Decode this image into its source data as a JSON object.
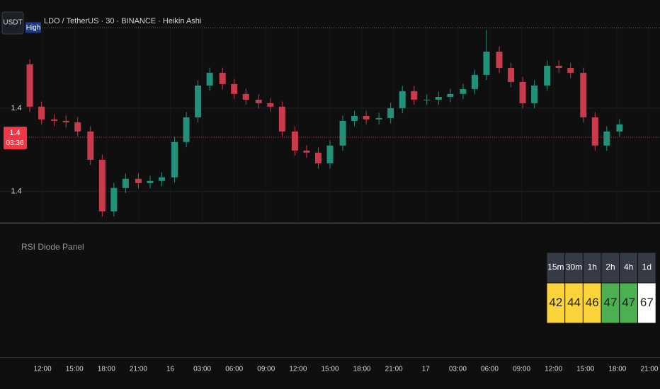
{
  "chart_data": {
    "type": "candlestick",
    "title": "LDO / TetherUS · 30 · BINANCE · Heikin Ashi",
    "currency": "USDT",
    "up_color": "#22917a",
    "down_color": "#c93b4c",
    "x": [
      10.8,
      11.9,
      13.1,
      14.2,
      15.3,
      16.5,
      17.6,
      18.7,
      19.8,
      21.0,
      22.1,
      23.2,
      24.4,
      25.5,
      26.6,
      27.7,
      28.9,
      30.0,
      31.1,
      32.3,
      33.4,
      34.5,
      35.7,
      36.8,
      37.9,
      39.0,
      40.2,
      41.3,
      42.4,
      43.6,
      44.7,
      45.8,
      46.9,
      48.1,
      49.2,
      50.3,
      51.5,
      52.6,
      53.7,
      54.9,
      56.0,
      57.1,
      58.2,
      59.4,
      60.5,
      61.6,
      62.8,
      63.9,
      65.0,
      66.2
    ],
    "open": [
      1.4082,
      1.40414,
      1.40292,
      1.40278,
      1.40264,
      1.40176,
      1.39905,
      1.3941,
      1.39634,
      1.39722,
      1.39681,
      1.39702,
      1.39736,
      1.40075,
      1.40312,
      1.40617,
      1.40739,
      1.40631,
      1.40536,
      1.40481,
      1.40447,
      1.40414,
      1.40176,
      1.39993,
      1.39973,
      1.39871,
      1.40041,
      1.40278,
      1.40325,
      1.40292,
      1.40305,
      1.404,
      1.40563,
      1.40481,
      1.40481,
      1.40508,
      1.40536,
      1.40583,
      1.40719,
      1.40942,
      1.40786,
      1.40651,
      1.40447,
      1.40617,
      1.40807,
      1.40786,
      1.40739,
      1.40312,
      1.40041,
      1.40176
    ],
    "high": [
      1.4087,
      1.40464,
      1.40342,
      1.40328,
      1.40314,
      1.40226,
      1.39955,
      1.39684,
      1.39772,
      1.39772,
      1.39752,
      1.39786,
      1.40125,
      1.40362,
      1.40667,
      1.40789,
      1.40789,
      1.40681,
      1.40586,
      1.40531,
      1.40497,
      1.40464,
      1.40226,
      1.40043,
      1.40023,
      1.40091,
      1.40328,
      1.40375,
      1.40375,
      1.40355,
      1.4045,
      1.40613,
      1.40613,
      1.40531,
      1.40558,
      1.40586,
      1.40633,
      1.40769,
      1.4115,
      1.40992,
      1.40836,
      1.40701,
      1.40667,
      1.40857,
      1.40857,
      1.40836,
      1.40789,
      1.40362,
      1.40226,
      1.40294
    ],
    "low": [
      1.40364,
      1.40242,
      1.40228,
      1.40214,
      1.40126,
      1.39855,
      1.3936,
      1.3936,
      1.39584,
      1.39631,
      1.39631,
      1.39652,
      1.39686,
      1.40025,
      1.40262,
      1.40567,
      1.40581,
      1.40486,
      1.40431,
      1.40397,
      1.40364,
      1.40126,
      1.39943,
      1.39923,
      1.39821,
      1.39821,
      1.39991,
      1.40228,
      1.40242,
      1.40242,
      1.40255,
      1.4035,
      1.40431,
      1.40431,
      1.40431,
      1.40458,
      1.40486,
      1.40533,
      1.40669,
      1.40736,
      1.40601,
      1.40397,
      1.40397,
      1.40567,
      1.40736,
      1.40689,
      1.40262,
      1.39991,
      1.39991,
      1.40126
    ],
    "close": [
      1.40414,
      1.40292,
      1.40278,
      1.40264,
      1.40176,
      1.39905,
      1.3941,
      1.39634,
      1.39722,
      1.39681,
      1.39702,
      1.39736,
      1.40075,
      1.40312,
      1.40617,
      1.40739,
      1.40631,
      1.40536,
      1.40481,
      1.40447,
      1.40414,
      1.40176,
      1.39993,
      1.39973,
      1.39871,
      1.40041,
      1.40278,
      1.40325,
      1.40292,
      1.40305,
      1.404,
      1.40563,
      1.40481,
      1.40481,
      1.40508,
      1.40536,
      1.40583,
      1.40719,
      1.40942,
      1.40786,
      1.40651,
      1.40447,
      1.40617,
      1.40807,
      1.40786,
      1.40739,
      1.40312,
      1.40041,
      1.40176,
      1.40244
    ],
    "xlim": [
      8,
      70
    ],
    "xticks": [
      {
        "value": 12,
        "label": "12:00"
      },
      {
        "value": 15,
        "label": "15:00"
      },
      {
        "value": 18,
        "label": "18:00"
      },
      {
        "value": 21,
        "label": "21:00"
      },
      {
        "value": 24,
        "label": "16"
      },
      {
        "value": 27,
        "label": "03:00"
      },
      {
        "value": 30,
        "label": "06:00"
      },
      {
        "value": 33,
        "label": "09:00"
      },
      {
        "value": 36,
        "label": "12:00"
      },
      {
        "value": 39,
        "label": "15:00"
      },
      {
        "value": 42,
        "label": "18:00"
      },
      {
        "value": 45,
        "label": "21:00"
      },
      {
        "value": 48,
        "label": "17"
      },
      {
        "value": 51,
        "label": "03:00"
      },
      {
        "value": 54,
        "label": "06:00"
      },
      {
        "value": 57,
        "label": "09:00"
      },
      {
        "value": 60,
        "label": "12:00"
      },
      {
        "value": 63,
        "label": "15:00"
      },
      {
        "value": 66,
        "label": "18:00"
      },
      {
        "value": 69,
        "label": "21:00"
      }
    ],
    "ylim": [
      1.393,
      1.412
    ],
    "yticks": [
      {
        "value": 1.404,
        "label": "1.4"
      },
      {
        "value": 1.396,
        "label": "1.4"
      }
    ],
    "grid": true,
    "high_level": {
      "value": 1.4117,
      "label": "High"
    },
    "last_price": {
      "value": 1.4012,
      "label": "1.4"
    },
    "countdown": "03:36"
  },
  "rsi_panel": {
    "title": "RSI Diode Panel",
    "timeframes": [
      "15m",
      "30m",
      "1h",
      "2h",
      "4h",
      "1d"
    ],
    "values": [
      "42",
      "44",
      "46",
      "47",
      "47",
      "67"
    ],
    "colors": [
      "#fbd43a",
      "#fbd43a",
      "#fbd43a",
      "#4caf50",
      "#4caf50",
      "#ffffff"
    ]
  }
}
